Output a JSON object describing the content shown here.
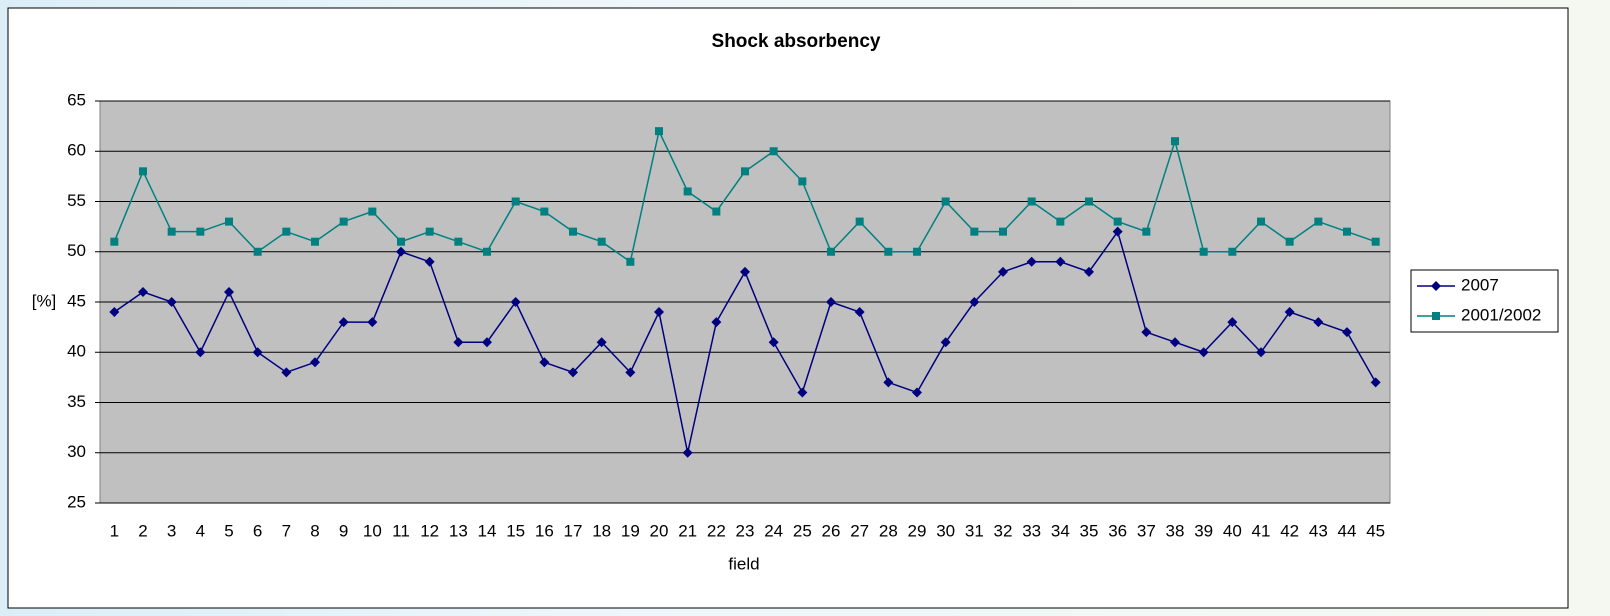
{
  "chart_data": {
    "type": "line",
    "title": "Shock absorbency",
    "x_label": "field",
    "y_label": "[%]",
    "categories": [
      "1",
      "2",
      "3",
      "4",
      "5",
      "6",
      "7",
      "8",
      "9",
      "10",
      "11",
      "12",
      "13",
      "14",
      "15",
      "16",
      "17",
      "18",
      "19",
      "20",
      "21",
      "22",
      "23",
      "24",
      "25",
      "26",
      "27",
      "28",
      "29",
      "30",
      "31",
      "32",
      "33",
      "34",
      "35",
      "36",
      "37",
      "38",
      "39",
      "40",
      "41",
      "42",
      "43",
      "44",
      "45"
    ],
    "series": [
      {
        "name": "2007",
        "color": "#000080",
        "marker": "diamond",
        "values": [
          44,
          46,
          45,
          40,
          46,
          40,
          38,
          39,
          43,
          43,
          50,
          49,
          41,
          41,
          45,
          39,
          38,
          41,
          38,
          44,
          30,
          43,
          48,
          41,
          36,
          45,
          44,
          37,
          36,
          41,
          45,
          48,
          49,
          49,
          48,
          52,
          42,
          41,
          40,
          43,
          40,
          44,
          43,
          42,
          37
        ]
      },
      {
        "name": "2001/2002",
        "color": "#008080",
        "marker": "square",
        "values": [
          51,
          58,
          52,
          52,
          53,
          50,
          52,
          51,
          53,
          54,
          51,
          52,
          51,
          50,
          55,
          54,
          52,
          51,
          49,
          62,
          56,
          54,
          58,
          60,
          57,
          50,
          53,
          50,
          50,
          55,
          52,
          52,
          55,
          53,
          55,
          53,
          52,
          61,
          50,
          50,
          53,
          51,
          53,
          52,
          51
        ]
      }
    ],
    "ylim": [
      25,
      65
    ],
    "yticks": [
      25,
      30,
      35,
      40,
      45,
      50,
      55,
      60,
      65
    ],
    "grid": true,
    "legend": "right",
    "plot_background": "#c0c0c0"
  }
}
